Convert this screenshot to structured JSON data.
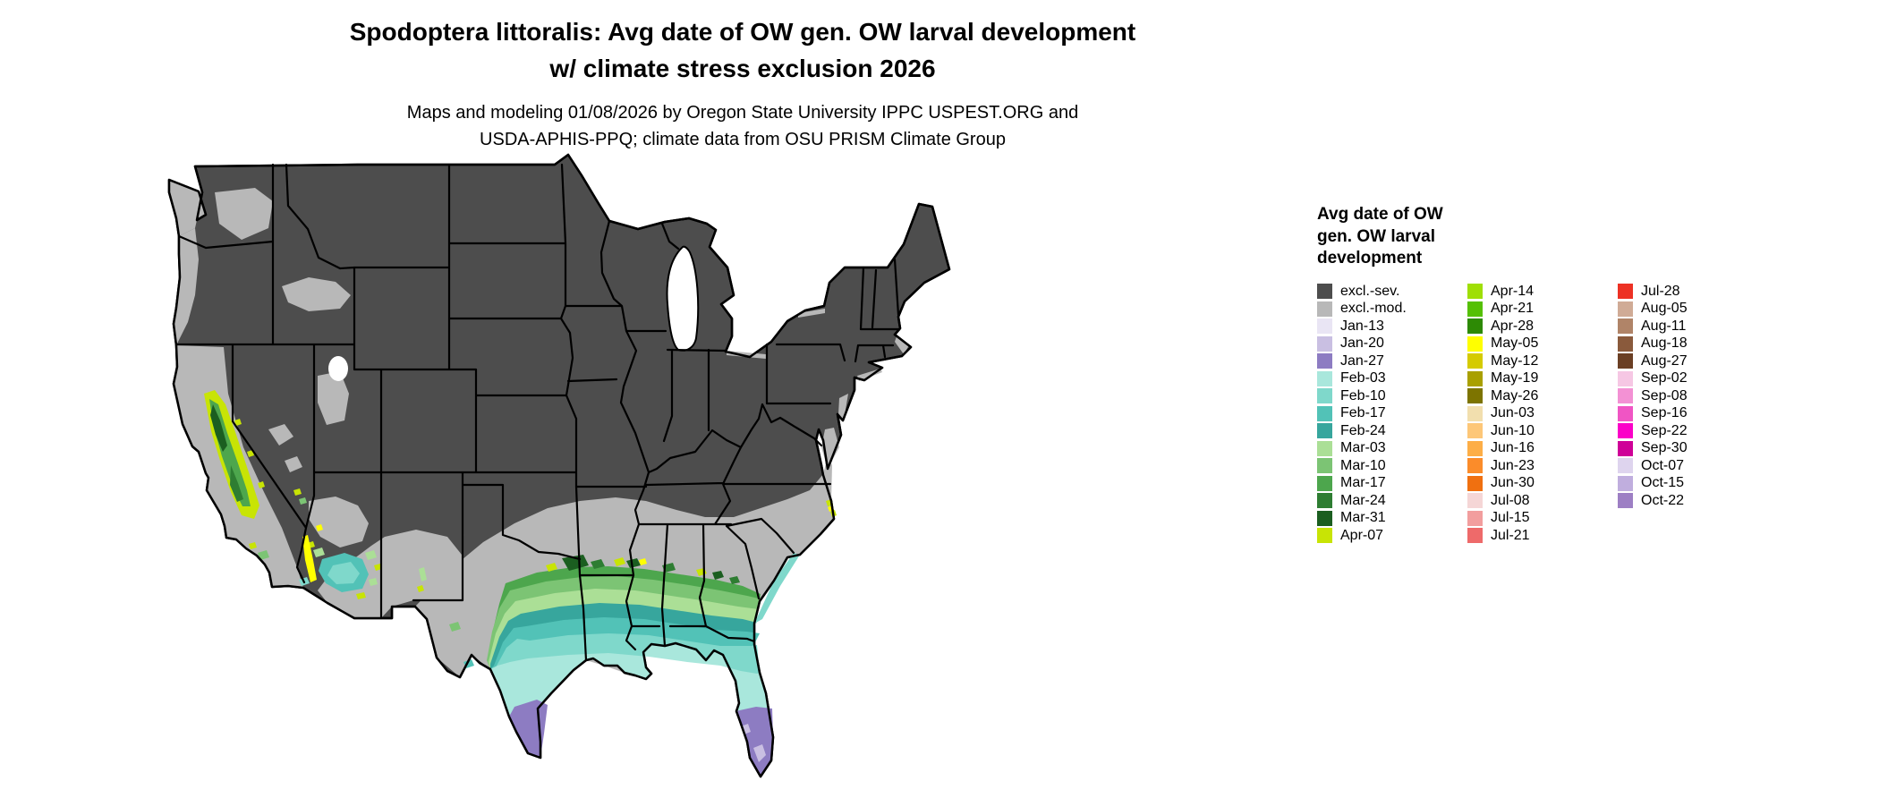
{
  "title": {
    "line1": "Spodoptera littoralis: Avg date of OW gen. OW larval development",
    "line2": "w/ climate stress exclusion 2026"
  },
  "subtitle": {
    "line1": "Maps and modeling 01/08/2026 by Oregon State University IPPC USPEST.ORG and",
    "line2": "USDA-APHIS-PPQ; climate data from OSU PRISM Climate Group"
  },
  "legend": {
    "title_lines": [
      "Avg date of OW",
      "gen. OW larval",
      "development"
    ],
    "columns": [
      [
        {
          "label": "excl.-sev.",
          "color": "#4d4d4d"
        },
        {
          "label": "excl.-mod.",
          "color": "#b8b8b8"
        },
        {
          "label": "Jan-13",
          "color": "#e9e5f4"
        },
        {
          "label": "Jan-20",
          "color": "#c9bfe2"
        },
        {
          "label": "Jan-27",
          "color": "#8d7cc2"
        },
        {
          "label": "Feb-03",
          "color": "#a9e7dc"
        },
        {
          "label": "Feb-10",
          "color": "#7fd8cb"
        },
        {
          "label": "Feb-17",
          "color": "#52c2b7"
        },
        {
          "label": "Feb-24",
          "color": "#37a69d"
        },
        {
          "label": "Mar-03",
          "color": "#abdf96"
        },
        {
          "label": "Mar-10",
          "color": "#7cc474"
        },
        {
          "label": "Mar-17",
          "color": "#4da64d"
        },
        {
          "label": "Mar-24",
          "color": "#2e7d32"
        },
        {
          "label": "Mar-31",
          "color": "#1b5e20"
        },
        {
          "label": "Apr-07",
          "color": "#c8e405"
        }
      ],
      [
        {
          "label": "Apr-14",
          "color": "#9fdf05"
        },
        {
          "label": "Apr-21",
          "color": "#55c005"
        },
        {
          "label": "Apr-28",
          "color": "#2d8a05"
        },
        {
          "label": "May-05",
          "color": "#ffff00"
        },
        {
          "label": "May-12",
          "color": "#d5cb00"
        },
        {
          "label": "May-19",
          "color": "#a9a000"
        },
        {
          "label": "May-26",
          "color": "#7d7400"
        },
        {
          "label": "Jun-03",
          "color": "#f2dfae"
        },
        {
          "label": "Jun-10",
          "color": "#fdc778"
        },
        {
          "label": "Jun-16",
          "color": "#fdae47"
        },
        {
          "label": "Jun-23",
          "color": "#fb8c2a"
        },
        {
          "label": "Jun-30",
          "color": "#f07010"
        },
        {
          "label": "Jul-08",
          "color": "#f5d6d6"
        },
        {
          "label": "Jul-15",
          "color": "#f29e9e"
        },
        {
          "label": "Jul-21",
          "color": "#ee6a6a"
        }
      ],
      [
        {
          "label": "Jul-28",
          "color": "#ed3124"
        },
        {
          "label": "Aug-05",
          "color": "#d0ab96"
        },
        {
          "label": "Aug-11",
          "color": "#b08468"
        },
        {
          "label": "Aug-18",
          "color": "#8a5a3c"
        },
        {
          "label": "Aug-27",
          "color": "#6b3f24"
        },
        {
          "label": "Sep-02",
          "color": "#f6c7e4"
        },
        {
          "label": "Sep-08",
          "color": "#f391d4"
        },
        {
          "label": "Sep-16",
          "color": "#f055c4"
        },
        {
          "label": "Sep-22",
          "color": "#fb00c8"
        },
        {
          "label": "Sep-30",
          "color": "#cf0098"
        },
        {
          "label": "Oct-07",
          "color": "#ded4ee"
        },
        {
          "label": "Oct-15",
          "color": "#c0aede"
        },
        {
          "label": "Oct-22",
          "color": "#9d7fc4"
        }
      ]
    ]
  },
  "palette": {
    "excl_sev": "#4d4d4d",
    "excl_mod": "#b8b8b8",
    "jan13": "#e9e5f4",
    "jan20": "#c9bfe2",
    "jan27": "#8d7cc2",
    "feb03": "#a9e7dc",
    "feb10": "#7fd8cb",
    "feb17": "#52c2b7",
    "feb24": "#37a69d",
    "mar03": "#abdf96",
    "mar10": "#7cc474",
    "mar17": "#4da64d",
    "mar24": "#2e7d32",
    "mar31": "#1b5e20",
    "apr07": "#c8e405",
    "may05": "#ffff00",
    "water": "#ffffff",
    "border": "#000000"
  }
}
